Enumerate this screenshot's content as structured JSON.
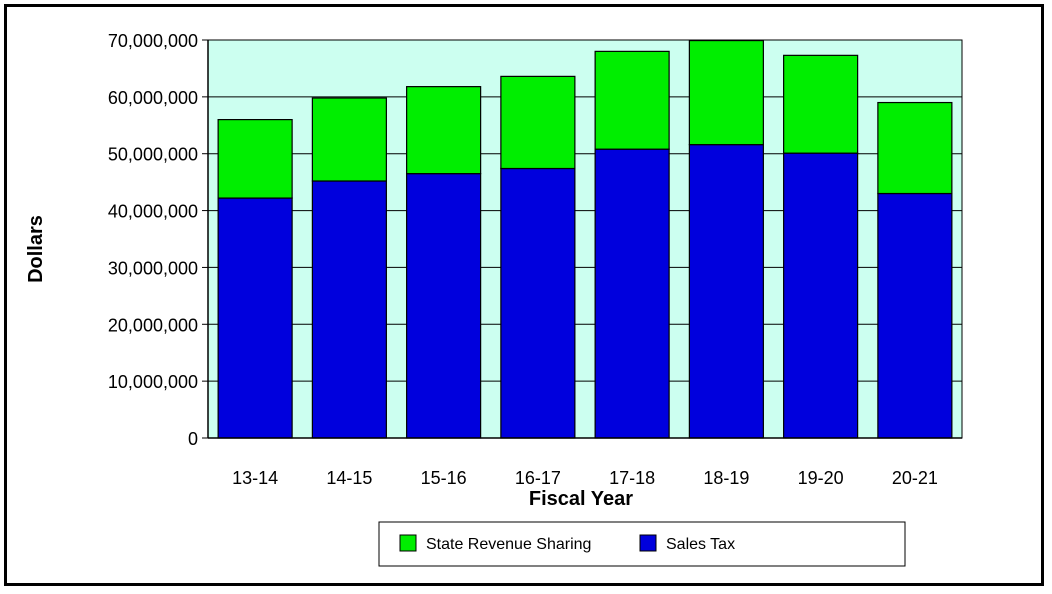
{
  "chart_data": {
    "type": "bar",
    "stacked": true,
    "categories": [
      "13-14",
      "14-15",
      "15-16",
      "16-17",
      "17-18",
      "18-19",
      "19-20",
      "20-21"
    ],
    "series": [
      {
        "name": "Sales Tax",
        "color": "#0000dd",
        "values": [
          42200000,
          45200000,
          46500000,
          47400000,
          50800000,
          51600000,
          50100000,
          43000000
        ]
      },
      {
        "name": "State Revenue Sharing",
        "color": "#00ee00",
        "values": [
          13800000,
          14600000,
          15300000,
          16200000,
          17200000,
          18300000,
          17200000,
          16000000
        ]
      }
    ],
    "xlabel": "Fiscal Year",
    "ylabel": "Dollars",
    "ylim": [
      0,
      70000000
    ],
    "yticks": [
      "0",
      "10,000,000",
      "20,000,000",
      "30,000,000",
      "40,000,000",
      "50,000,000",
      "60,000,000",
      "70,000,000"
    ],
    "plot_background": "#ccfff0",
    "grid": true,
    "legend": {
      "placement": "bottom-center",
      "entries": [
        "State Revenue Sharing",
        "Sales Tax"
      ]
    }
  }
}
